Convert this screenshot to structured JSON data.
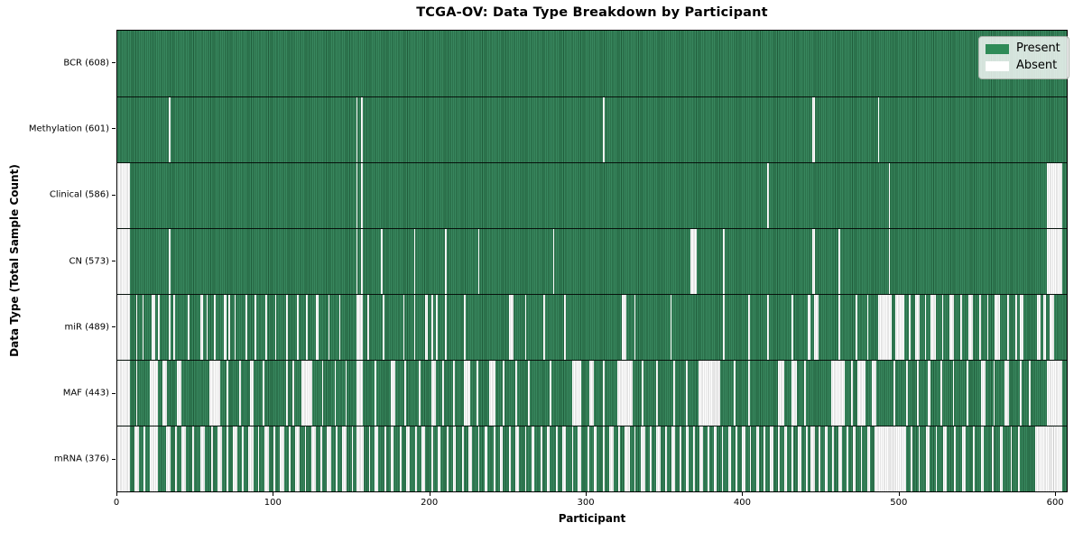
{
  "title": "TCGA-OV: Data Type Breakdown by Participant",
  "x_axis": {
    "label": "Participant",
    "ticks": [
      0,
      100,
      200,
      300,
      400,
      500,
      600
    ]
  },
  "y_axis": {
    "label": "Data Type (Total Sample Count)"
  },
  "legend": {
    "items": [
      {
        "key": "present",
        "label": "Present",
        "color": "#2e8b57"
      },
      {
        "key": "absent",
        "label": "Absent",
        "color": "#ffffff"
      }
    ]
  },
  "colors": {
    "present_light": "#38875e",
    "present_dark": "#205d3b",
    "absent_light": "#ffffff",
    "absent_line": "#cbcbcb",
    "spine": "#000000"
  },
  "chart_data": {
    "type": "heatmap",
    "title": "TCGA-OV: Data Type Breakdown by Participant",
    "xlabel": "Participant",
    "ylabel": "Data Type (Total Sample Count)",
    "x_ticks": [
      0,
      100,
      200,
      300,
      400,
      500,
      600
    ],
    "xlim": [
      0,
      608
    ],
    "n_participants": 608,
    "n_rows": 7,
    "grid": false,
    "legend_position": "upper right",
    "rows": [
      {
        "key": "bcr",
        "label": "BCR (608)",
        "count": 608,
        "absent_ranges": []
      },
      {
        "key": "methylation",
        "label": "Methylation (601)",
        "count": 601,
        "absent_ranges": [
          [
            33,
            1
          ],
          [
            153,
            1
          ],
          [
            156,
            1
          ],
          [
            311,
            1
          ],
          [
            445,
            2
          ],
          [
            487,
            1
          ]
        ]
      },
      {
        "key": "clinical",
        "label": "Clinical (586)",
        "count": 586,
        "absent_ranges": [
          [
            0,
            8
          ],
          [
            153,
            1
          ],
          [
            156,
            1
          ],
          [
            416,
            1
          ],
          [
            494,
            1
          ],
          [
            595,
            10
          ]
        ]
      },
      {
        "key": "cn",
        "label": "CN (573)",
        "count": 573,
        "absent_ranges": [
          [
            0,
            8
          ],
          [
            33,
            1
          ],
          [
            153,
            1
          ],
          [
            156,
            1
          ],
          [
            169,
            1
          ],
          [
            190,
            1
          ],
          [
            210,
            1
          ],
          [
            231,
            1
          ],
          [
            279,
            1
          ],
          [
            367,
            4
          ],
          [
            388,
            1
          ],
          [
            445,
            2
          ],
          [
            462,
            1
          ],
          [
            494,
            1
          ],
          [
            595,
            10
          ]
        ]
      },
      {
        "key": "mir",
        "label": "miR (489)",
        "count": 489,
        "absent_ranges": [
          [
            0,
            8
          ],
          [
            12,
            1
          ],
          [
            16,
            1
          ],
          [
            22,
            2
          ],
          [
            26,
            1
          ],
          [
            33,
            1
          ],
          [
            36,
            1
          ],
          [
            45,
            1
          ],
          [
            53,
            2
          ],
          [
            57,
            1
          ],
          [
            62,
            1
          ],
          [
            68,
            2
          ],
          [
            71,
            1
          ],
          [
            75,
            1
          ],
          [
            82,
            1
          ],
          [
            88,
            1
          ],
          [
            95,
            1
          ],
          [
            101,
            1
          ],
          [
            108,
            1
          ],
          [
            115,
            1
          ],
          [
            121,
            1
          ],
          [
            127,
            2
          ],
          [
            135,
            1
          ],
          [
            142,
            1
          ],
          [
            153,
            4
          ],
          [
            160,
            1
          ],
          [
            170,
            1
          ],
          [
            183,
            1
          ],
          [
            190,
            1
          ],
          [
            197,
            2
          ],
          [
            201,
            1
          ],
          [
            204,
            1
          ],
          [
            210,
            1
          ],
          [
            222,
            1
          ],
          [
            251,
            3
          ],
          [
            261,
            1
          ],
          [
            273,
            1
          ],
          [
            286,
            1
          ],
          [
            323,
            3
          ],
          [
            331,
            1
          ],
          [
            354,
            1
          ],
          [
            388,
            1
          ],
          [
            404,
            1
          ],
          [
            416,
            1
          ],
          [
            432,
            1
          ],
          [
            442,
            2
          ],
          [
            446,
            3
          ],
          [
            462,
            1
          ],
          [
            473,
            1
          ],
          [
            480,
            1
          ],
          [
            487,
            9
          ],
          [
            498,
            6
          ],
          [
            507,
            1
          ],
          [
            511,
            3
          ],
          [
            517,
            1
          ],
          [
            521,
            3
          ],
          [
            528,
            1
          ],
          [
            533,
            3
          ],
          [
            540,
            1
          ],
          [
            545,
            3
          ],
          [
            552,
            1
          ],
          [
            557,
            1
          ],
          [
            562,
            3
          ],
          [
            570,
            1
          ],
          [
            575,
            1
          ],
          [
            578,
            2
          ],
          [
            589,
            2
          ],
          [
            593,
            2
          ],
          [
            597,
            3
          ]
        ]
      },
      {
        "key": "maf",
        "label": "MAF (443)",
        "count": 443,
        "absent_ranges": [
          [
            0,
            8
          ],
          [
            12,
            1
          ],
          [
            21,
            5
          ],
          [
            29,
            3
          ],
          [
            38,
            3
          ],
          [
            59,
            7
          ],
          [
            70,
            1
          ],
          [
            78,
            1
          ],
          [
            85,
            2
          ],
          [
            93,
            1
          ],
          [
            108,
            1
          ],
          [
            112,
            1
          ],
          [
            118,
            7
          ],
          [
            131,
            1
          ],
          [
            139,
            1
          ],
          [
            146,
            1
          ],
          [
            153,
            4
          ],
          [
            165,
            1
          ],
          [
            175,
            3
          ],
          [
            184,
            1
          ],
          [
            193,
            1
          ],
          [
            201,
            3
          ],
          [
            208,
            1
          ],
          [
            215,
            1
          ],
          [
            222,
            4
          ],
          [
            230,
            1
          ],
          [
            238,
            4
          ],
          [
            247,
            1
          ],
          [
            255,
            1
          ],
          [
            263,
            1
          ],
          [
            277,
            1
          ],
          [
            291,
            6
          ],
          [
            302,
            3
          ],
          [
            311,
            1
          ],
          [
            320,
            10
          ],
          [
            336,
            1
          ],
          [
            345,
            1
          ],
          [
            356,
            1
          ],
          [
            364,
            1
          ],
          [
            372,
            14
          ],
          [
            395,
            1
          ],
          [
            404,
            1
          ],
          [
            423,
            4
          ],
          [
            432,
            3
          ],
          [
            440,
            1
          ],
          [
            457,
            9
          ],
          [
            470,
            1
          ],
          [
            474,
            5
          ],
          [
            483,
            3
          ],
          [
            497,
            1
          ],
          [
            505,
            1
          ],
          [
            512,
            1
          ],
          [
            519,
            2
          ],
          [
            527,
            1
          ],
          [
            535,
            1
          ],
          [
            544,
            1
          ],
          [
            553,
            3
          ],
          [
            561,
            1
          ],
          [
            568,
            3
          ],
          [
            578,
            1
          ],
          [
            584,
            1
          ],
          [
            595,
            10
          ]
        ]
      },
      {
        "key": "mrna",
        "label": "mRNA (376)",
        "count": 376,
        "absent_ranges": [
          [
            0,
            8
          ],
          [
            11,
            3
          ],
          [
            17,
            1
          ],
          [
            21,
            5
          ],
          [
            31,
            3
          ],
          [
            37,
            1
          ],
          [
            41,
            3
          ],
          [
            48,
            1
          ],
          [
            53,
            3
          ],
          [
            60,
            1
          ],
          [
            64,
            3
          ],
          [
            70,
            1
          ],
          [
            74,
            3
          ],
          [
            80,
            1
          ],
          [
            84,
            3
          ],
          [
            90,
            1
          ],
          [
            94,
            3
          ],
          [
            100,
            1
          ],
          [
            104,
            3
          ],
          [
            110,
            1
          ],
          [
            114,
            3
          ],
          [
            120,
            1
          ],
          [
            124,
            3
          ],
          [
            130,
            1
          ],
          [
            134,
            3
          ],
          [
            140,
            1
          ],
          [
            144,
            3
          ],
          [
            150,
            1
          ],
          [
            153,
            5
          ],
          [
            161,
            1
          ],
          [
            165,
            2
          ],
          [
            171,
            1
          ],
          [
            175,
            2
          ],
          [
            181,
            1
          ],
          [
            185,
            2
          ],
          [
            191,
            1
          ],
          [
            195,
            2
          ],
          [
            201,
            1
          ],
          [
            205,
            2
          ],
          [
            211,
            1
          ],
          [
            215,
            2
          ],
          [
            221,
            1
          ],
          [
            225,
            2
          ],
          [
            231,
            1
          ],
          [
            235,
            2
          ],
          [
            241,
            1
          ],
          [
            245,
            2
          ],
          [
            251,
            1
          ],
          [
            255,
            2
          ],
          [
            261,
            1
          ],
          [
            265,
            2
          ],
          [
            271,
            1
          ],
          [
            275,
            2
          ],
          [
            281,
            1
          ],
          [
            285,
            2
          ],
          [
            291,
            1
          ],
          [
            295,
            2
          ],
          [
            301,
            1
          ],
          [
            305,
            2
          ],
          [
            311,
            1
          ],
          [
            315,
            3
          ],
          [
            321,
            1
          ],
          [
            325,
            3
          ],
          [
            331,
            1
          ],
          [
            335,
            3
          ],
          [
            341,
            1
          ],
          [
            345,
            3
          ],
          [
            351,
            1
          ],
          [
            355,
            2
          ],
          [
            360,
            1
          ],
          [
            364,
            2
          ],
          [
            369,
            1
          ],
          [
            373,
            2
          ],
          [
            378,
            1
          ],
          [
            382,
            2
          ],
          [
            387,
            1
          ],
          [
            391,
            2
          ],
          [
            396,
            1
          ],
          [
            400,
            2
          ],
          [
            405,
            1
          ],
          [
            409,
            2
          ],
          [
            414,
            1
          ],
          [
            418,
            2
          ],
          [
            423,
            1
          ],
          [
            427,
            2
          ],
          [
            432,
            1
          ],
          [
            436,
            2
          ],
          [
            441,
            1
          ],
          [
            444,
            3
          ],
          [
            449,
            1
          ],
          [
            453,
            2
          ],
          [
            458,
            1
          ],
          [
            462,
            2
          ],
          [
            467,
            1
          ],
          [
            471,
            2
          ],
          [
            476,
            1
          ],
          [
            480,
            2
          ],
          [
            485,
            20
          ],
          [
            508,
            1
          ],
          [
            513,
            1
          ],
          [
            518,
            2
          ],
          [
            524,
            1
          ],
          [
            529,
            2
          ],
          [
            536,
            1
          ],
          [
            541,
            2
          ],
          [
            548,
            1
          ],
          [
            553,
            2
          ],
          [
            560,
            1
          ],
          [
            565,
            2
          ],
          [
            572,
            1
          ],
          [
            577,
            1
          ],
          [
            588,
            17
          ]
        ]
      }
    ],
    "cell_states": {
      "present": "Present",
      "absent": "Absent"
    }
  }
}
